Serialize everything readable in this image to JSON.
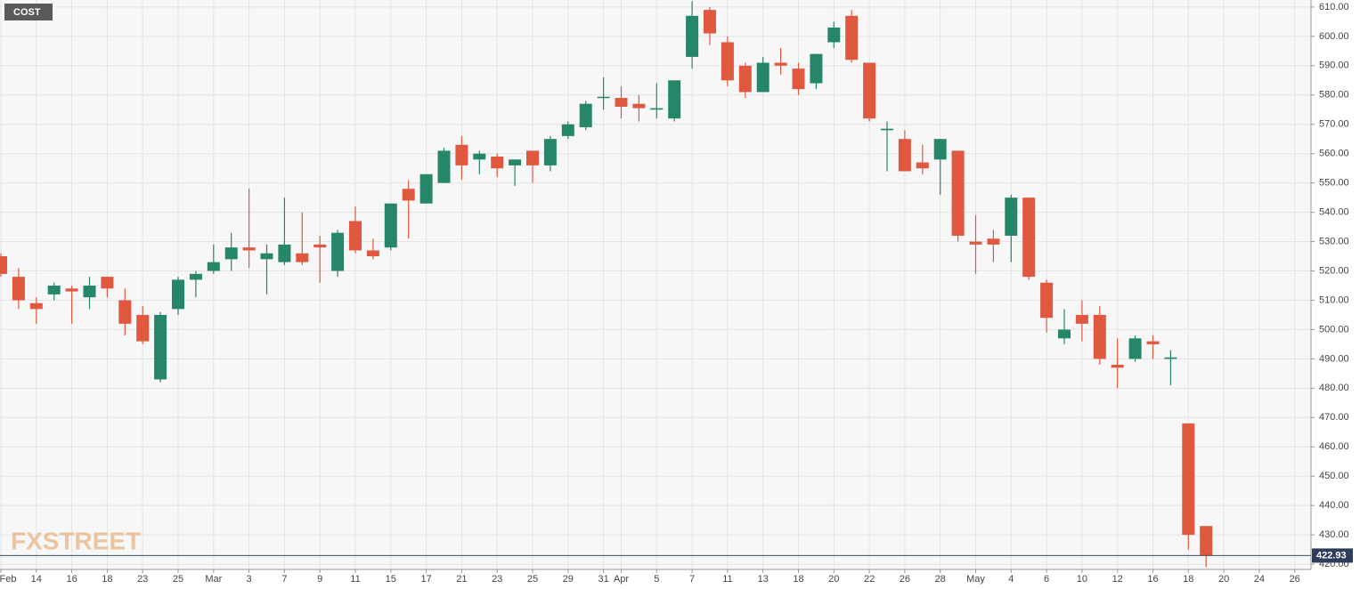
{
  "chart_data": {
    "type": "candlestick",
    "ticker": "COST",
    "watermark": "FXSTREET",
    "last_price": 422.93,
    "up_color": "#26866a",
    "down_color": "#e0583f",
    "grid": true,
    "categories": [
      "Feb",
      null,
      "14",
      null,
      "16",
      null,
      "18",
      null,
      "23",
      null,
      "25",
      null,
      "Mar",
      null,
      "3",
      null,
      "7",
      null,
      "9",
      null,
      "11",
      null,
      "15",
      null,
      "17",
      null,
      "21",
      null,
      "23",
      null,
      "25",
      null,
      "29",
      null,
      "31",
      "Apr",
      null,
      "5",
      null,
      "7",
      null,
      "11",
      null,
      "13",
      null,
      "18",
      null,
      "20",
      null,
      "22",
      null,
      "26",
      null,
      "28",
      null,
      "May",
      null,
      "4",
      null,
      "6",
      null,
      "10",
      null,
      "12",
      null,
      "16",
      null,
      "18",
      null,
      "20",
      null,
      "24",
      null,
      "26"
    ],
    "open": [
      525,
      518,
      509,
      512,
      514,
      511,
      518,
      510,
      505,
      483,
      507,
      517,
      520,
      524,
      528,
      524,
      523,
      526,
      529,
      520,
      537,
      527,
      528,
      548,
      543,
      550,
      563,
      558,
      559,
      556,
      561,
      556,
      566,
      569,
      579,
      579,
      577,
      575,
      572,
      593,
      609,
      598,
      590,
      581,
      591,
      589,
      584,
      598,
      607,
      591,
      568,
      565,
      557,
      558,
      561,
      530,
      531,
      532,
      545,
      516,
      497,
      505,
      505,
      488,
      490,
      496,
      490,
      468,
      433,
      null,
      null,
      null,
      null,
      null
    ],
    "high": [
      526,
      521,
      511,
      516,
      515,
      518,
      518,
      514,
      508,
      506,
      518,
      520,
      529,
      533,
      548,
      529,
      545,
      540,
      532,
      534,
      542,
      531,
      543,
      551,
      553,
      562,
      566,
      561,
      560,
      558,
      561,
      566,
      571,
      578,
      586,
      583,
      580,
      584,
      585,
      612,
      610,
      600,
      591,
      593,
      596,
      591,
      594,
      605,
      609,
      591,
      571,
      568,
      563,
      565,
      561,
      539,
      534,
      546,
      545,
      517,
      507,
      510,
      508,
      497,
      498,
      498,
      493,
      468,
      433,
      null,
      null,
      null,
      null,
      null
    ],
    "low": [
      518,
      507,
      502,
      510,
      502,
      507,
      511,
      498,
      495,
      482,
      505,
      511,
      519,
      520,
      521,
      512,
      522,
      522,
      516,
      518,
      526,
      524,
      527,
      531,
      543,
      550,
      551,
      553,
      552,
      549,
      550,
      554,
      565,
      568,
      575,
      572,
      571,
      572,
      571,
      589,
      597,
      583,
      579,
      581,
      587,
      580,
      582,
      596,
      591,
      571,
      554,
      554,
      553,
      546,
      530,
      519,
      523,
      523,
      517,
      499,
      495,
      496,
      488,
      480,
      489,
      490,
      481,
      425,
      419,
      null,
      null,
      null,
      null,
      null
    ],
    "close": [
      519,
      510,
      507,
      515,
      513,
      515,
      514,
      502,
      496,
      505,
      517,
      519,
      523,
      528,
      527,
      526,
      529,
      523,
      528,
      533,
      527,
      525,
      543,
      544,
      553,
      561,
      556,
      560,
      555,
      558,
      556,
      565,
      570,
      577,
      579.4,
      576,
      575.5,
      575.5,
      585,
      607,
      601,
      585,
      581,
      591,
      590,
      582,
      594,
      603,
      592,
      572,
      568.5,
      554,
      555,
      565,
      532,
      529,
      529,
      545,
      518,
      504,
      500,
      502,
      490,
      487,
      497,
      495,
      490.5,
      430,
      422.93,
      null,
      null,
      null,
      null,
      null
    ],
    "ylim": [
      418.2,
      612.4
    ],
    "yticks": [
      {
        "value": 420,
        "label": "420.00"
      },
      {
        "value": 430,
        "label": "430.00"
      },
      {
        "value": 440,
        "label": "440.00"
      },
      {
        "value": 450,
        "label": "450.00"
      },
      {
        "value": 460,
        "label": "460.00"
      },
      {
        "value": 470,
        "label": "470.00"
      },
      {
        "value": 480,
        "label": "480.00"
      },
      {
        "value": 490,
        "label": "490.00"
      },
      {
        "value": 500,
        "label": "500.00"
      },
      {
        "value": 510,
        "label": "510.00"
      },
      {
        "value": 520,
        "label": "520.00"
      },
      {
        "value": 530,
        "label": "530.00"
      },
      {
        "value": 540,
        "label": "540.00"
      },
      {
        "value": 550,
        "label": "550.00"
      },
      {
        "value": 560,
        "label": "560.00"
      },
      {
        "value": 570,
        "label": "570.00"
      },
      {
        "value": 580,
        "label": "580.00"
      },
      {
        "value": 590,
        "label": "590.00"
      },
      {
        "value": 600,
        "label": "600.00"
      },
      {
        "value": 610,
        "label": "610.00"
      }
    ]
  }
}
